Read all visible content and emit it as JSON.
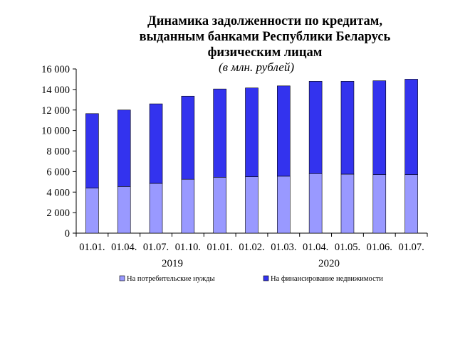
{
  "chart_data": {
    "type": "bar",
    "stacked": true,
    "title_lines": [
      "Динамика задолженности по кредитам,",
      "выданным банками Республики Беларусь",
      "физическим лицам"
    ],
    "subtitle": "(в млн. рублей)",
    "categories": [
      "01.01.",
      "01.04.",
      "01.07.",
      "01.10.",
      "01.01.",
      "01.02.",
      "01.03.",
      "01.04.",
      "01.05.",
      "01.06.",
      "01.07."
    ],
    "year_labels": [
      "2019",
      "2020"
    ],
    "y_ticks": [
      "0",
      "2 000",
      "4 000",
      "6 000",
      "8 000",
      "10 000",
      "12 000",
      "14 000",
      "16 000"
    ],
    "ylim": [
      0,
      16000
    ],
    "series": [
      {
        "name": "На потребительские нужды",
        "color": "#9999ff",
        "values": [
          4400,
          4550,
          4850,
          5250,
          5450,
          5500,
          5550,
          5800,
          5750,
          5700,
          5700
        ]
      },
      {
        "name": "На финансирование недвижимости",
        "color": "#3333ee",
        "values": [
          7250,
          7450,
          7750,
          8100,
          8600,
          8650,
          8800,
          9000,
          9050,
          9150,
          9300
        ]
      }
    ],
    "legend_position": "bottom"
  }
}
